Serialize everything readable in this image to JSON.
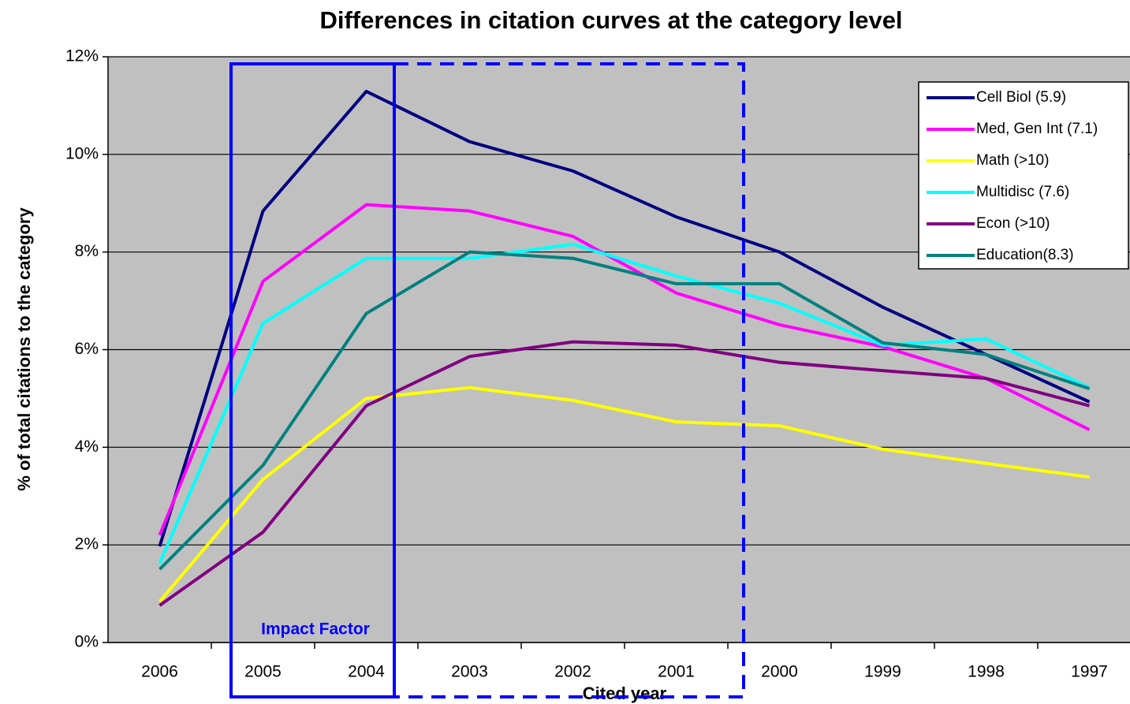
{
  "chart_data": {
    "type": "line",
    "title": "Differences in citation curves at the category level",
    "x_label": "Cited year",
    "y_label": "% of total citations to the category",
    "annotation": "Impact Factor",
    "categories": [
      "2006",
      "2005",
      "2004",
      "2003",
      "2002",
      "2001",
      "2000",
      "1999",
      "1998",
      "1997"
    ],
    "series": [
      {
        "name": "Cell Biol (5.9)",
        "color": "#000080",
        "values": [
          1.97,
          8.84,
          11.29,
          10.26,
          9.66,
          8.72,
          8.0,
          6.87,
          5.9,
          4.93
        ]
      },
      {
        "name": "Med, Gen Int (7.1)",
        "color": "#ff00ff",
        "values": [
          2.2,
          7.4,
          8.97,
          8.84,
          8.32,
          7.16,
          6.51,
          6.06,
          5.41,
          4.36
        ]
      },
      {
        "name": "Math (>10)",
        "color": "#ffff00",
        "values": [
          0.84,
          3.34,
          5.0,
          5.22,
          4.96,
          4.52,
          4.44,
          3.96,
          3.67,
          3.39
        ]
      },
      {
        "name": "Multidisc (7.6)",
        "color": "#00ffff",
        "values": [
          1.62,
          6.54,
          7.87,
          7.87,
          8.16,
          7.51,
          6.95,
          6.09,
          6.22,
          5.22
        ]
      },
      {
        "name": "Econ (>10)",
        "color": "#800080",
        "values": [
          0.76,
          2.26,
          4.85,
          5.86,
          6.16,
          6.09,
          5.74,
          5.57,
          5.41,
          4.85
        ]
      },
      {
        "name": "Education(8.3)",
        "color": "#008080",
        "values": [
          1.5,
          3.63,
          6.74,
          8.0,
          7.87,
          7.35,
          7.35,
          6.14,
          5.9,
          5.2
        ]
      }
    ],
    "ylim": [
      0,
      12
    ],
    "yticks": [
      {
        "value": 0,
        "label": "0%"
      },
      {
        "value": 2,
        "label": "2%"
      },
      {
        "value": 4,
        "label": "4%"
      },
      {
        "value": 6,
        "label": "6%"
      },
      {
        "value": 8,
        "label": "8%"
      },
      {
        "value": 10,
        "label": "10%"
      },
      {
        "value": 12,
        "label": "12%"
      }
    ],
    "grid": true,
    "legend": "upper right"
  }
}
